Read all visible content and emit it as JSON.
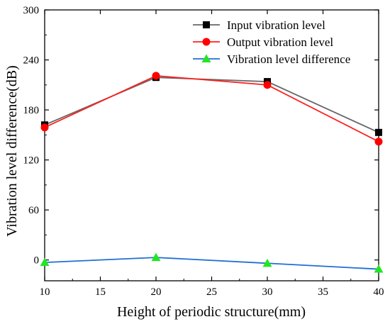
{
  "chart_data": {
    "type": "line",
    "title": "",
    "xlabel": "Height of periodic structure(mm)",
    "ylabel": "Vibration level difference(dB)",
    "x": [
      10,
      20,
      30,
      40
    ],
    "xlim": [
      10,
      40
    ],
    "ylim": [
      -25,
      300
    ],
    "xticks": [
      10,
      15,
      20,
      25,
      30,
      35,
      40
    ],
    "yticks": [
      0,
      60,
      120,
      180,
      240,
      300
    ],
    "grid": false,
    "legend_position": "top-right",
    "series": [
      {
        "name": "Input vibration level",
        "values": [
          162,
          219,
          214,
          153
        ],
        "color": "#666666",
        "marker": "square",
        "marker_color": "#000000"
      },
      {
        "name": "Output vibration level",
        "values": [
          159,
          221,
          210,
          142
        ],
        "color": "#ff2020",
        "marker": "circle",
        "marker_color": "#ff0000"
      },
      {
        "name": "Vibration level difference",
        "values": [
          -3,
          3,
          -4,
          -11
        ],
        "color": "#1f6fd6",
        "marker": "triangle",
        "marker_color": "#22e622"
      }
    ]
  }
}
